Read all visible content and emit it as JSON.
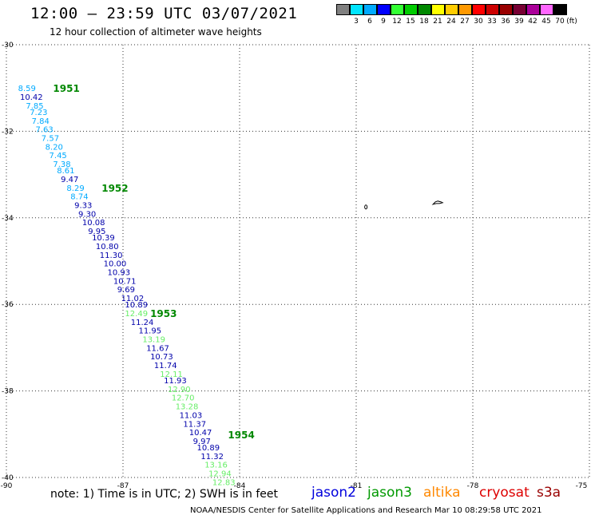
{
  "title": "12:00 – 23:59 UTC 03/07/2021",
  "subtitle": "12 hour collection of altimeter wave heights",
  "colorbar": {
    "unit": "(ft)",
    "swatches": [
      {
        "label": "",
        "color": "#808080"
      },
      {
        "label": "3",
        "color": "#00e5ff"
      },
      {
        "label": "6",
        "color": "#00aaff"
      },
      {
        "label": "9",
        "color": "#0000ff"
      },
      {
        "label": "12",
        "color": "#33ff33"
      },
      {
        "label": "15",
        "color": "#00cc00"
      },
      {
        "label": "18",
        "color": "#008800"
      },
      {
        "label": "21",
        "color": "#ffff00"
      },
      {
        "label": "24",
        "color": "#ffcc00"
      },
      {
        "label": "27",
        "color": "#ff9900"
      },
      {
        "label": "30",
        "color": "#ff0000"
      },
      {
        "label": "33",
        "color": "#cc0000"
      },
      {
        "label": "36",
        "color": "#990000"
      },
      {
        "label": "39",
        "color": "#770033"
      },
      {
        "label": "42",
        "color": "#aa0099"
      },
      {
        "label": "45",
        "color": "#ff66ff"
      },
      {
        "label": "70",
        "color": "#000000"
      }
    ]
  },
  "map": {
    "lon_range": [
      -90,
      -75
    ],
    "lat_range": [
      -40,
      -30
    ],
    "lon_ticks": [
      "-90",
      "-87",
      "-84",
      "-81",
      "-78",
      "-75"
    ],
    "lon_tick_values": [
      -90,
      -87,
      -84,
      -81,
      -78,
      -75
    ],
    "lat_ticks": [
      "-30",
      "-32",
      "-34",
      "-36",
      "-38",
      "-40"
    ],
    "lat_tick_values": [
      -30,
      -32,
      -34,
      -36,
      -38,
      -40
    ],
    "grid_color": "#333333",
    "time_labels": [
      {
        "text": "1951",
        "lon": -88.8,
        "lat": -31.0
      },
      {
        "text": "1952",
        "lon": -87.55,
        "lat": -33.3
      },
      {
        "text": "1953",
        "lon": -86.3,
        "lat": -36.2
      },
      {
        "text": "1954",
        "lon": -84.3,
        "lat": -39.0
      }
    ],
    "observations": [
      {
        "v": "8.59",
        "lon": -89.7,
        "lat": -31.0,
        "color": "#00aaff"
      },
      {
        "v": "10.42",
        "lon": -89.65,
        "lat": -31.2,
        "color": "#0000aa"
      },
      {
        "v": "7.85",
        "lon": -89.5,
        "lat": -31.4,
        "color": "#00aaff"
      },
      {
        "v": "7.23",
        "lon": -89.4,
        "lat": -31.55,
        "color": "#00aaff"
      },
      {
        "v": "7.84",
        "lon": -89.35,
        "lat": -31.75,
        "color": "#00aaff"
      },
      {
        "v": "7.63",
        "lon": -89.25,
        "lat": -31.95,
        "color": "#00aaff"
      },
      {
        "v": "7.57",
        "lon": -89.1,
        "lat": -32.15,
        "color": "#00aaff"
      },
      {
        "v": "8.20",
        "lon": -89.0,
        "lat": -32.35,
        "color": "#00aaff"
      },
      {
        "v": "7.45",
        "lon": -88.9,
        "lat": -32.55,
        "color": "#00aaff"
      },
      {
        "v": "7.38",
        "lon": -88.8,
        "lat": -32.75,
        "color": "#00aaff"
      },
      {
        "v": "8.61",
        "lon": -88.7,
        "lat": -32.9,
        "color": "#00aaff"
      },
      {
        "v": "9.47",
        "lon": -88.6,
        "lat": -33.1,
        "color": "#0000aa"
      },
      {
        "v": "8.29",
        "lon": -88.45,
        "lat": -33.3,
        "color": "#00aaff"
      },
      {
        "v": "8.74",
        "lon": -88.35,
        "lat": -33.5,
        "color": "#00aaff"
      },
      {
        "v": "9.33",
        "lon": -88.25,
        "lat": -33.7,
        "color": "#0000aa"
      },
      {
        "v": "9.30",
        "lon": -88.15,
        "lat": -33.9,
        "color": "#0000aa"
      },
      {
        "v": "10.08",
        "lon": -88.05,
        "lat": -34.1,
        "color": "#0000aa"
      },
      {
        "v": "9.95",
        "lon": -87.9,
        "lat": -34.3,
        "color": "#0000aa"
      },
      {
        "v": "10.39",
        "lon": -87.8,
        "lat": -34.45,
        "color": "#0000aa"
      },
      {
        "v": "10.80",
        "lon": -87.7,
        "lat": -34.65,
        "color": "#0000aa"
      },
      {
        "v": "11.30",
        "lon": -87.6,
        "lat": -34.85,
        "color": "#0000aa"
      },
      {
        "v": "10.00",
        "lon": -87.5,
        "lat": -35.05,
        "color": "#0000aa"
      },
      {
        "v": "10.93",
        "lon": -87.4,
        "lat": -35.25,
        "color": "#0000aa"
      },
      {
        "v": "10.71",
        "lon": -87.25,
        "lat": -35.45,
        "color": "#0000aa"
      },
      {
        "v": "9.69",
        "lon": -87.15,
        "lat": -35.65,
        "color": "#0000aa"
      },
      {
        "v": "11.02",
        "lon": -87.05,
        "lat": -35.85,
        "color": "#0000aa"
      },
      {
        "v": "10.89",
        "lon": -86.95,
        "lat": -36.0,
        "color": "#0000aa"
      },
      {
        "v": "12.49",
        "lon": -86.95,
        "lat": -36.2,
        "color": "#66ee66"
      },
      {
        "v": "11.24",
        "lon": -86.8,
        "lat": -36.4,
        "color": "#0000aa"
      },
      {
        "v": "11.95",
        "lon": -86.6,
        "lat": -36.6,
        "color": "#0000aa"
      },
      {
        "v": "13.19",
        "lon": -86.5,
        "lat": -36.8,
        "color": "#66ee66"
      },
      {
        "v": "11.67",
        "lon": -86.4,
        "lat": -37.0,
        "color": "#0000aa"
      },
      {
        "v": "10.73",
        "lon": -86.3,
        "lat": -37.2,
        "color": "#0000aa"
      },
      {
        "v": "11.74",
        "lon": -86.2,
        "lat": -37.4,
        "color": "#0000aa"
      },
      {
        "v": "12.11",
        "lon": -86.05,
        "lat": -37.6,
        "color": "#66ee66"
      },
      {
        "v": "11.93",
        "lon": -85.95,
        "lat": -37.75,
        "color": "#0000aa"
      },
      {
        "v": "12.90",
        "lon": -85.85,
        "lat": -37.95,
        "color": "#66ee66"
      },
      {
        "v": "12.70",
        "lon": -85.75,
        "lat": -38.15,
        "color": "#66ee66"
      },
      {
        "v": "13.28",
        "lon": -85.65,
        "lat": -38.35,
        "color": "#66ee66"
      },
      {
        "v": "11.03",
        "lon": -85.55,
        "lat": -38.55,
        "color": "#0000aa"
      },
      {
        "v": "11.37",
        "lon": -85.45,
        "lat": -38.75,
        "color": "#0000aa"
      },
      {
        "v": "10.47",
        "lon": -85.3,
        "lat": -38.95,
        "color": "#0000aa"
      },
      {
        "v": "9.97",
        "lon": -85.2,
        "lat": -39.15,
        "color": "#0000aa"
      },
      {
        "v": "10.89",
        "lon": -85.1,
        "lat": -39.3,
        "color": "#0000aa"
      },
      {
        "v": "11.32",
        "lon": -85.0,
        "lat": -39.5,
        "color": "#0000aa"
      },
      {
        "v": "13.16",
        "lon": -84.9,
        "lat": -39.7,
        "color": "#66ee66"
      },
      {
        "v": "12.94",
        "lon": -84.8,
        "lat": -39.9,
        "color": "#66ee66"
      },
      {
        "v": "12.83",
        "lon": -84.7,
        "lat": -40.1,
        "color": "#66ee66"
      }
    ],
    "islands": [
      {
        "lon": -80.75,
        "lat": -33.75
      },
      {
        "lon": -78.9,
        "lat": -33.65
      }
    ]
  },
  "note": "note:  1) Time is in UTC;  2) SWH is in feet",
  "satellites": [
    {
      "name": "jason2",
      "color": "#0000dd"
    },
    {
      "name": "jason3",
      "color": "#009900"
    },
    {
      "name": "altika",
      "color": "#ff8800"
    },
    {
      "name": "cryosat",
      "color": "#dd0000"
    },
    {
      "name": "s3a",
      "color": "#990000"
    }
  ],
  "footer": "NOAA/NESDIS Center for Satellite Applications and Research    Mar 10 08:29:58 UTC 2021"
}
